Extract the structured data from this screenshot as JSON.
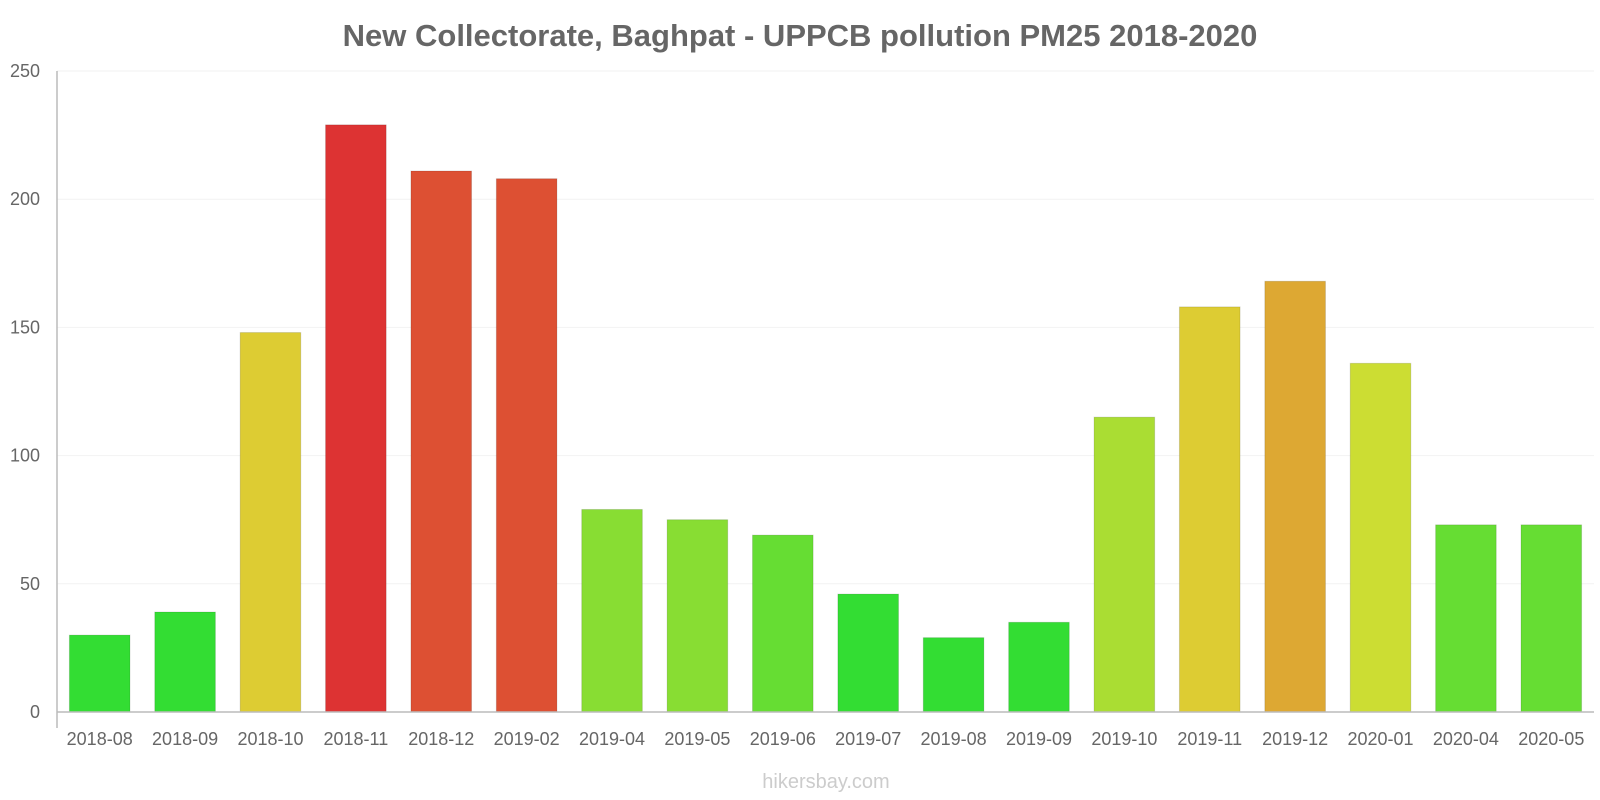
{
  "chart_data": {
    "type": "bar",
    "title": "New Collectorate, Baghpat - UPPCB pollution PM25 2018-2020",
    "xlabel": "",
    "ylabel": "",
    "ylim": [
      0,
      250
    ],
    "yticks": [
      0,
      50,
      100,
      150,
      200,
      250
    ],
    "grid": true,
    "legend": "none",
    "categories": [
      "2018-08",
      "2018-09",
      "2018-10",
      "2018-11",
      "2018-12",
      "2019-02",
      "2019-04",
      "2019-05",
      "2019-06",
      "2019-07",
      "2019-08",
      "2019-09",
      "2019-10",
      "2019-11",
      "2019-12",
      "2020-01",
      "2020-04",
      "2020-05"
    ],
    "series": [
      {
        "name": "PM25",
        "values": [
          30,
          39,
          148,
          229,
          211,
          208,
          79,
          75,
          69,
          46,
          29,
          35,
          115,
          158,
          168,
          136,
          73,
          73
        ],
        "colors": [
          "#33dd33",
          "#33dd33",
          "#ddcc33",
          "#dd3333",
          "#dd5033",
          "#dd5033",
          "#88dd33",
          "#88dd33",
          "#66dd33",
          "#33dd33",
          "#33dd33",
          "#33dd33",
          "#aadd33",
          "#ddcc33",
          "#dda833",
          "#ccdd33",
          "#66dd33",
          "#66dd33"
        ]
      }
    ]
  },
  "watermark": "hikersbay.com"
}
